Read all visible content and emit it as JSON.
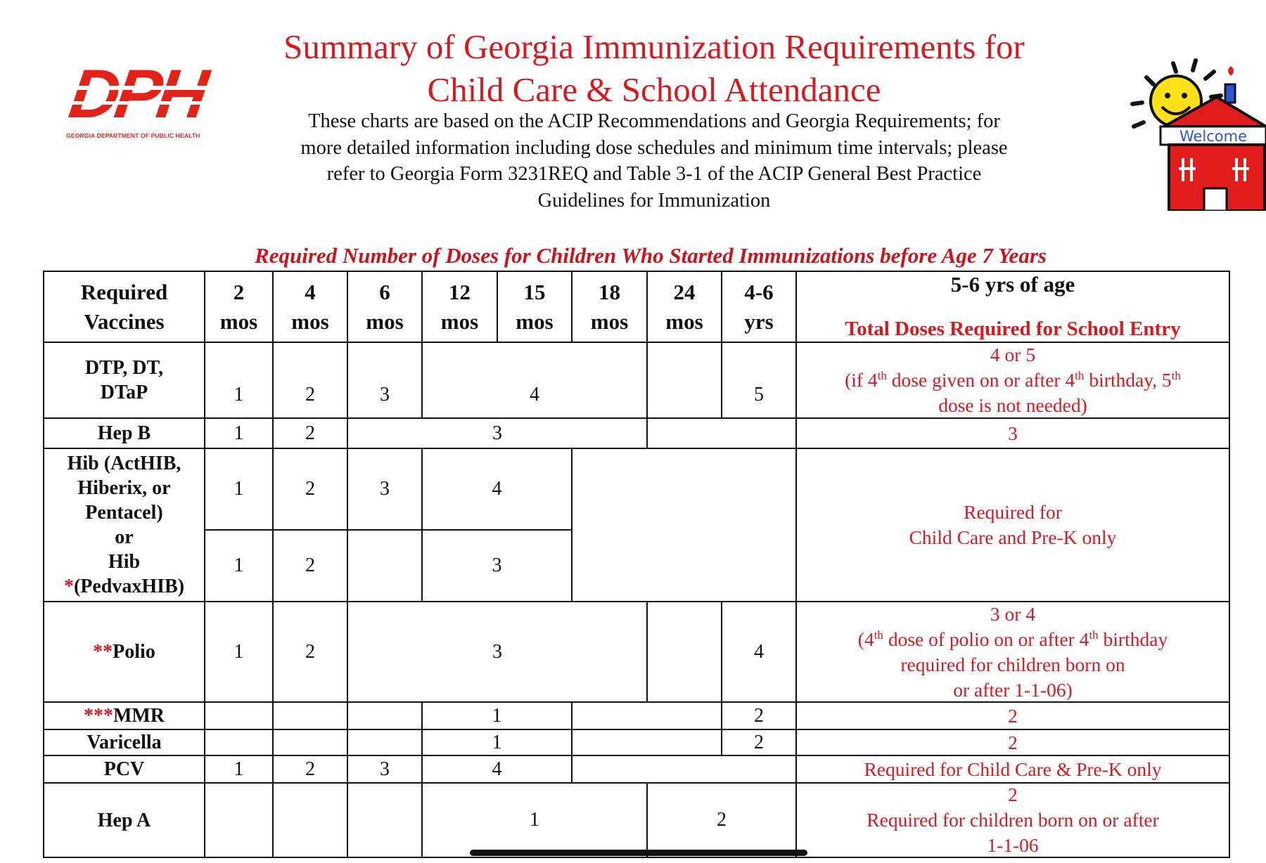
{
  "header": {
    "logo_letters": "DPH",
    "logo_org": "GEORGIA DEPARTMENT OF PUBLIC HEALTH",
    "title_line1": "Summary of Georgia Immunization Requirements for",
    "title_line2": "Child Care & School Attendance",
    "subtitle_line1": "These charts are based on the ACIP Recommendations and Georgia Requirements; for",
    "subtitle_line2": "more detailed information including dose schedules and minimum time intervals; please",
    "subtitle_line3": "refer to Georgia Form 3231REQ and Table 3-1 of the ACIP General Best Practice",
    "subtitle_line4": "Guidelines for Immunization",
    "welcome_sign": "Welcome"
  },
  "table": {
    "heading": "Required Number of Doses for Children Who Started Immunizations before Age 7 Years",
    "columns": {
      "vaccines_l1": "Required",
      "vaccines_l2": "Vaccines",
      "c1_a": "2",
      "c1_b": "mos",
      "c2_a": "4",
      "c2_b": "mos",
      "c3_a": "6",
      "c3_b": "mos",
      "c4_a": "12",
      "c4_b": "mos",
      "c5_a": "15",
      "c5_b": "mos",
      "c6_a": "18",
      "c6_b": "mos",
      "c7_a": "24",
      "c7_b": "mos",
      "c8_a": "4-6",
      "c8_b": "yrs",
      "total_a": "5-6 yrs of age",
      "total_b": "Total Doses Required for School Entry"
    },
    "rows": {
      "dtp": {
        "name_l1": "DTP, DT,",
        "name_l2": "DTaP",
        "d2": "1",
        "d4": "2",
        "d6": "3",
        "d12_15": "4",
        "d46": "5",
        "total_l1": "4 or 5",
        "total_l2a": "(if 4",
        "total_l2_sup1": "th",
        "total_l2b": " dose given on or after 4",
        "total_l2_sup2": "th",
        "total_l2c": " birthday, 5",
        "total_l2_sup3": "th",
        "total_l3": "dose is not needed)"
      },
      "hepb": {
        "name": "Hep B",
        "d2": "1",
        "d4": "2",
        "d6_15": "3",
        "total": "3"
      },
      "hib": {
        "name_l1": "Hib (ActHIB,",
        "name_l2": "Hiberix, or",
        "name_l3": "Pentacel)",
        "name_l4": "or",
        "name_l5": "Hib",
        "name_l6_mark": "*",
        "name_l6": "(PedvaxHIB)",
        "a_d2": "1",
        "a_d4": "2",
        "a_d6": "3",
        "a_d12_15": "4",
        "b_d2": "1",
        "b_d4": "2",
        "b_d12_15": "3",
        "total_l1": "Required for",
        "total_l2": "Child Care and Pre-K only"
      },
      "polio": {
        "mark": "**",
        "name": "Polio",
        "d2": "1",
        "d4": "2",
        "d6_18": "3",
        "d46": "4",
        "total_l1": "3 or 4",
        "total_l2a": "(4",
        "total_l2_sup1": "th",
        "total_l2b": " dose of polio on or after 4",
        "total_l2_sup2": "th",
        "total_l2c": " birthday",
        "total_l3": "required for children born on",
        "total_l4": "or after 1-1-06)"
      },
      "mmr": {
        "mark": "***",
        "name": "MMR",
        "d12_15": "1",
        "d46": "2",
        "total": "2"
      },
      "varicella": {
        "name": "Varicella",
        "d12_15": "1",
        "d46": "2",
        "total": "2"
      },
      "pcv": {
        "name": "PCV",
        "d2": "1",
        "d4": "2",
        "d6": "3",
        "d12_15": "4",
        "total": "Required for Child Care & Pre-K only"
      },
      "hepa": {
        "name": "Hep A",
        "d12_18": "1",
        "d24_46": "2",
        "total_l1": "2",
        "total_l2": "Required for children born on or after",
        "total_l3": "1-1-06"
      }
    }
  }
}
